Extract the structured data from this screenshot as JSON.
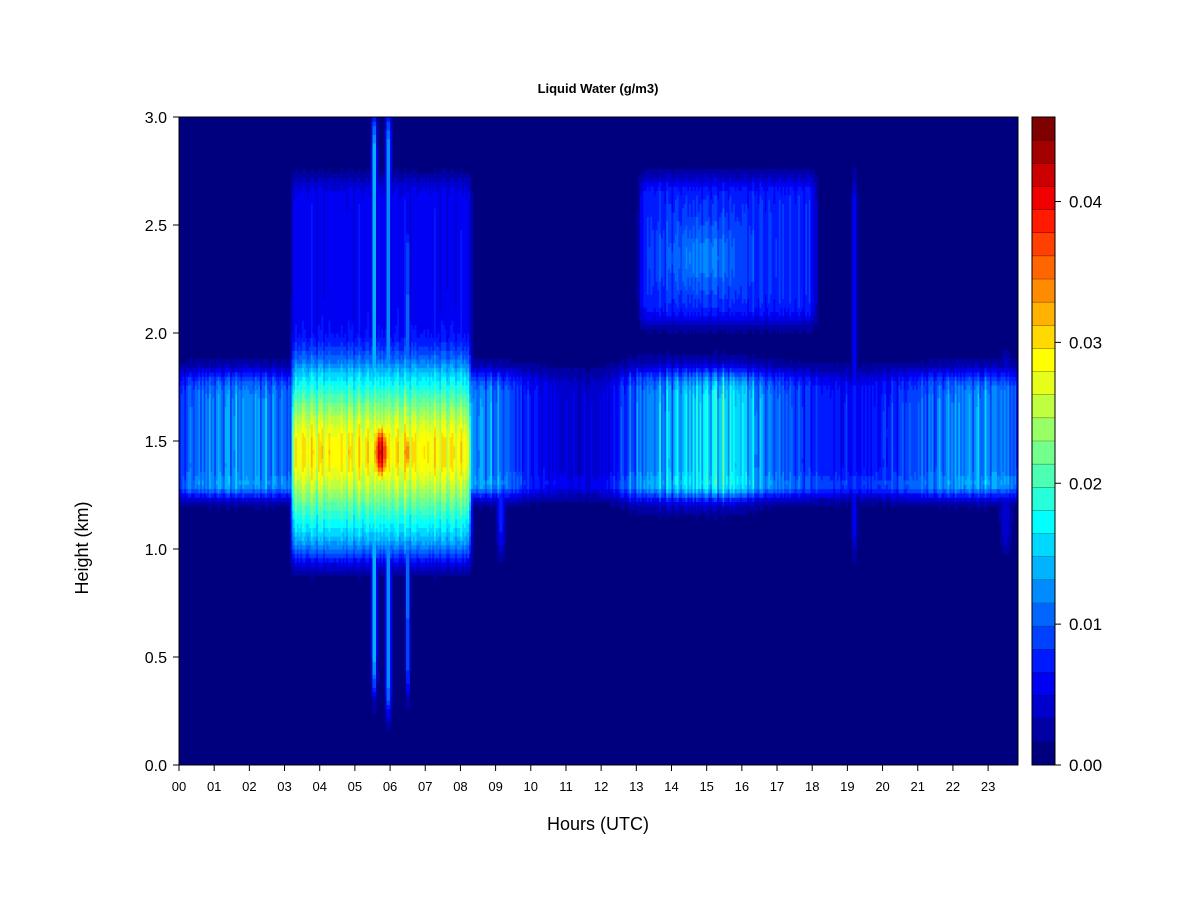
{
  "chart_data": {
    "type": "heatmap",
    "title": "Liquid Water (g/m3)",
    "xlabel": "Hours (UTC)",
    "ylabel": "Height (km)",
    "xlim": [
      0,
      23.85
    ],
    "ylim": [
      0,
      3.0
    ],
    "x_ticks": [
      "00",
      "01",
      "02",
      "03",
      "04",
      "05",
      "06",
      "07",
      "08",
      "09",
      "10",
      "11",
      "12",
      "13",
      "14",
      "15",
      "16",
      "17",
      "18",
      "19",
      "20",
      "21",
      "22",
      "23"
    ],
    "y_ticks": [
      "0.0",
      "0.5",
      "1.0",
      "1.5",
      "2.0",
      "2.5",
      "3.0"
    ],
    "colorbar": {
      "range": [
        0,
        0.046
      ],
      "ticks": [
        "0.00",
        "0.01",
        "0.02",
        "0.03",
        "0.04"
      ],
      "tick_values": [
        0,
        0.01,
        0.02,
        0.03,
        0.04
      ],
      "colors": [
        "#00007f",
        "#0000a5",
        "#0000cc",
        "#0000f2",
        "#001aff",
        "#0040ff",
        "#0066ff",
        "#008cff",
        "#00b3ff",
        "#00d9ff",
        "#00ffff",
        "#26ffd9",
        "#4cffb3",
        "#73ff8c",
        "#99ff66",
        "#bfff40",
        "#e6ff1a",
        "#ffff00",
        "#ffd900",
        "#ffb300",
        "#ff8c00",
        "#ff6600",
        "#ff4000",
        "#ff1a00",
        "#f20000",
        "#cc0000",
        "#a50000",
        "#7f0000"
      ]
    },
    "features": [
      {
        "x": [
          3.2,
          8.3
        ],
        "y": [
          0.95,
          2.7
        ],
        "peak": 0.045,
        "note": "strong cloud layer, maximum near 05:30-06:30 at 1.3-1.6 km"
      },
      {
        "x": [
          0,
          23.85
        ],
        "y": [
          1.25,
          1.85
        ],
        "peak": 0.015,
        "note": "persistent layer near 1.5 km"
      },
      {
        "x": [
          13.1,
          18.1
        ],
        "y": [
          2.05,
          2.7
        ],
        "peak": 0.012,
        "note": "upper layer"
      }
    ]
  }
}
